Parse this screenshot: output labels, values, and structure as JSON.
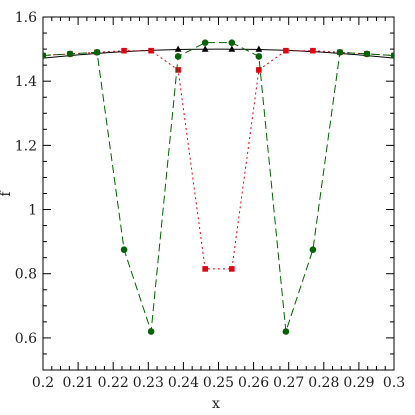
{
  "chart_data": {
    "type": "line",
    "title": "",
    "xlabel": "x",
    "ylabel": "f",
    "xlim": [
      0.2,
      0.3
    ],
    "ylim": [
      0.5,
      1.6
    ],
    "x_ticks": [
      0.2,
      0.21,
      0.22,
      0.23,
      0.24,
      0.25,
      0.26,
      0.27,
      0.28,
      0.29,
      0.3
    ],
    "x_tick_labels": [
      "0.2",
      "0.21",
      "0.22",
      "0.23",
      "0.24",
      "0.25",
      "0.26",
      "0.27",
      "0.28",
      "0.29",
      "0.3"
    ],
    "y_ticks": [
      0.6,
      0.8,
      1.0,
      1.2,
      1.4,
      1.6
    ],
    "y_tick_labels": [
      "0.6",
      "0.8",
      "1",
      "1.2",
      "1.4",
      "1.6"
    ],
    "grid": false,
    "legend": false,
    "series": [
      {
        "style": "solid",
        "color": "#000000",
        "marker": "none",
        "x": [
          0.2,
          0.21,
          0.22,
          0.23,
          0.24,
          0.25,
          0.26,
          0.27,
          0.28,
          0.29,
          0.3
        ],
        "y": [
          1.472,
          1.482,
          1.49,
          1.496,
          1.499,
          1.5,
          1.499,
          1.496,
          1.49,
          1.482,
          1.472
        ]
      },
      {
        "style": "solid",
        "color": "#000000",
        "marker": "triangle",
        "x": [
          0.2385,
          0.2462,
          0.2538,
          0.2615
        ],
        "y": [
          1.5,
          1.5,
          1.5,
          1.5
        ]
      },
      {
        "style": "dotted",
        "color": "#e8000b",
        "marker": "square",
        "x": [
          0.2,
          0.2077,
          0.2154,
          0.2231,
          0.2308,
          0.2385,
          0.2462,
          0.2538,
          0.2615,
          0.2692,
          0.2769,
          0.2846,
          0.2923,
          0.3
        ],
        "y": [
          1.48,
          1.485,
          1.49,
          1.495,
          1.495,
          1.435,
          0.815,
          0.815,
          1.435,
          1.495,
          1.495,
          1.49,
          1.485,
          1.48
        ]
      },
      {
        "style": "dashed",
        "color": "#006400",
        "marker": "circle",
        "x": [
          0.2,
          0.2077,
          0.2154,
          0.2231,
          0.2308,
          0.2385,
          0.2462,
          0.2538,
          0.2615,
          0.2692,
          0.2769,
          0.2846,
          0.2923,
          0.3
        ],
        "y": [
          1.48,
          1.485,
          1.49,
          0.875,
          0.62,
          1.477,
          1.52,
          1.52,
          1.477,
          0.62,
          0.875,
          1.49,
          1.485,
          1.48
        ]
      }
    ]
  }
}
